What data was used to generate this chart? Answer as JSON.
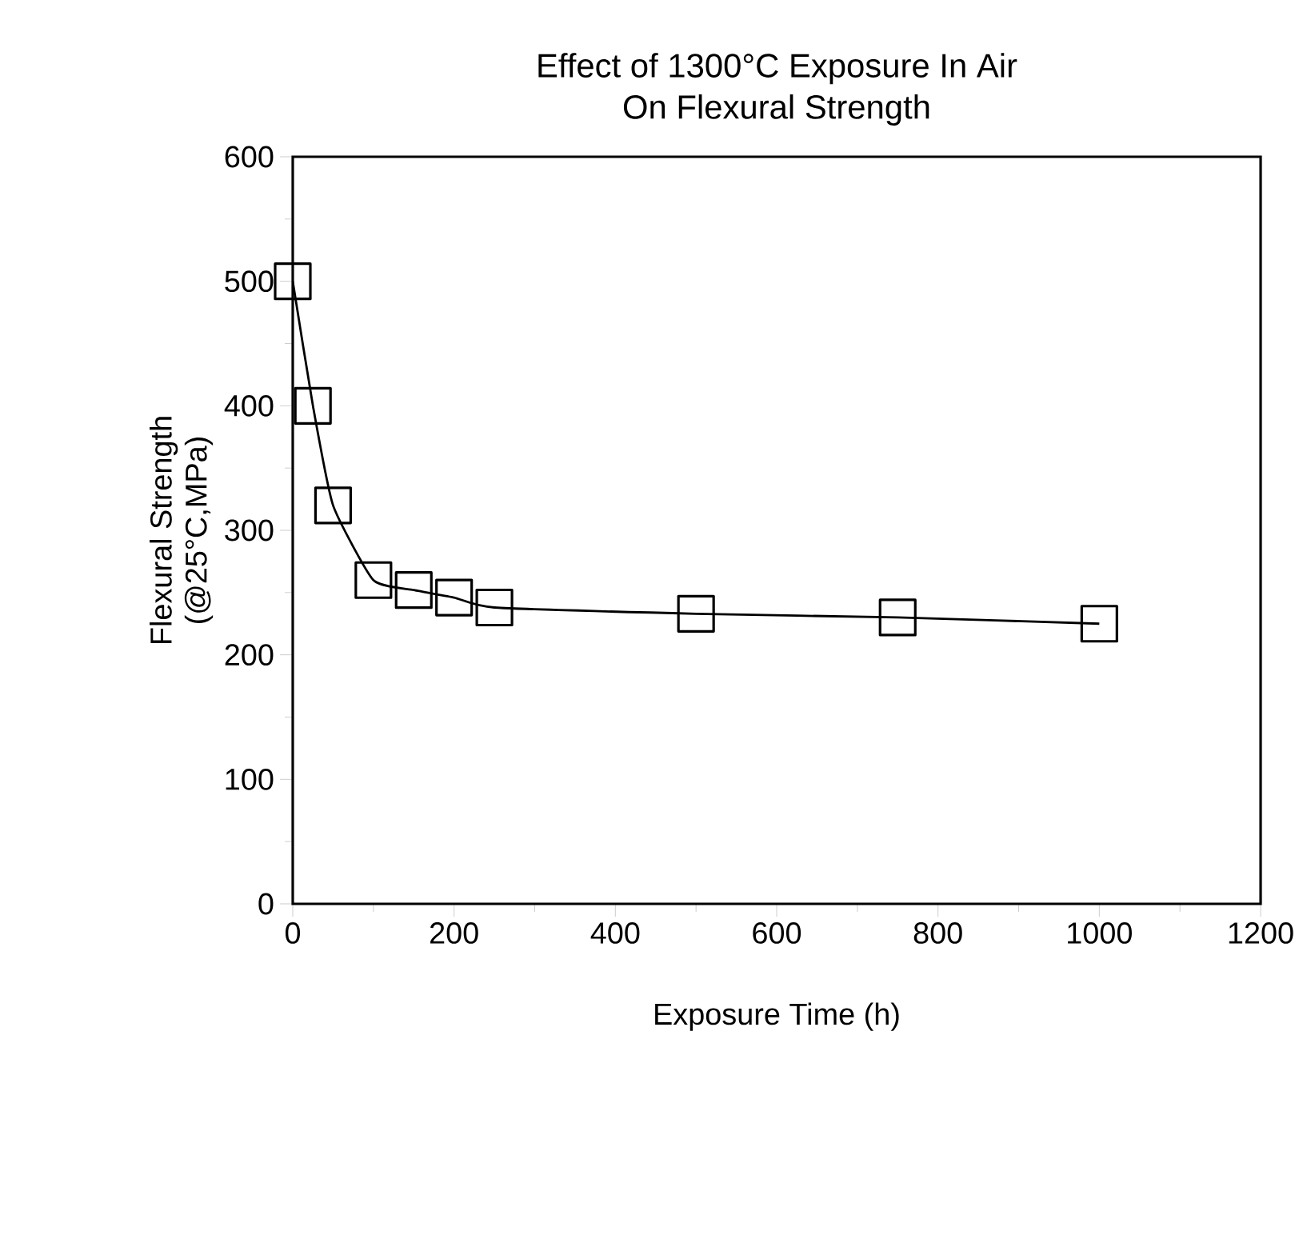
{
  "chart_data": {
    "type": "line",
    "title": "Effect of 1300°C Exposure In Air\nOn Flexural Strength",
    "xlabel": "Exposure Time (h)",
    "ylabel": "Flexural Strength\n(@25°C,MPa)",
    "x": [
      0,
      25,
      50,
      100,
      150,
      200,
      250,
      500,
      750,
      1000
    ],
    "values": [
      500,
      400,
      320,
      260,
      252,
      246,
      238,
      233,
      230,
      225
    ],
    "color": "#000000",
    "marker": "square",
    "line_style": "solid",
    "xlim": [
      0,
      1200
    ],
    "xticks": [
      0,
      200,
      400,
      600,
      800,
      1000,
      1200
    ],
    "ylim": [
      0,
      600
    ],
    "yticks": [
      0,
      100,
      200,
      300,
      400,
      500,
      600
    ],
    "grid": false
  }
}
